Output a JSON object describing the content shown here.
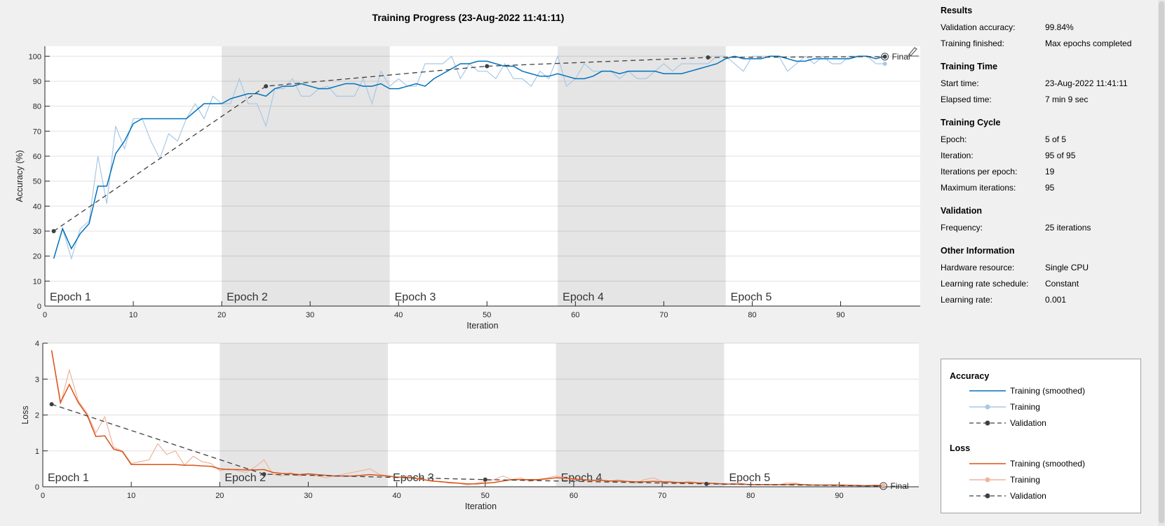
{
  "title": "Training Progress (23-Aug-2022 11:41:11)",
  "colors": {
    "accuracy_smoothed": "#0072bd",
    "accuracy_training": "#a8c8e6",
    "loss_smoothed": "#d95319",
    "loss_training": "#f0b49b",
    "validation": "#404040",
    "epoch_shade": "#e5e5e5"
  },
  "results": {
    "heading": "Results",
    "rows": [
      {
        "label": "Validation accuracy:",
        "value": "99.84%"
      },
      {
        "label": "Training finished:",
        "value": "Max epochs completed"
      }
    ]
  },
  "training_time": {
    "heading": "Training Time",
    "rows": [
      {
        "label": "Start time:",
        "value": "23-Aug-2022 11:41:11"
      },
      {
        "label": "Elapsed time:",
        "value": "7 min 9 sec"
      }
    ]
  },
  "training_cycle": {
    "heading": "Training Cycle",
    "rows": [
      {
        "label": "Epoch:",
        "value": "5 of 5"
      },
      {
        "label": "Iteration:",
        "value": "95 of 95"
      },
      {
        "label": "Iterations per epoch:",
        "value": "19"
      },
      {
        "label": "Maximum iterations:",
        "value": "95"
      }
    ]
  },
  "validation": {
    "heading": "Validation",
    "rows": [
      {
        "label": "Frequency:",
        "value": "25 iterations"
      }
    ]
  },
  "other_information": {
    "heading": "Other Information",
    "rows": [
      {
        "label": "Hardware resource:",
        "value": "Single CPU"
      },
      {
        "label": "Learning rate schedule:",
        "value": "Constant"
      },
      {
        "label": "Learning rate:",
        "value": "0.001"
      }
    ]
  },
  "legend": {
    "accuracy_heading": "Accuracy",
    "loss_heading": "Loss",
    "training_smoothed": "Training (smoothed)",
    "training": "Training",
    "validation": "Validation"
  },
  "chart_data": [
    {
      "type": "line",
      "ylabel": "Accuracy (%)",
      "xlabel": "Iteration",
      "xlim": [
        0,
        99
      ],
      "ylim": [
        0,
        104
      ],
      "xticks": [
        0,
        10,
        20,
        30,
        40,
        50,
        60,
        70,
        80,
        90
      ],
      "yticks": [
        0,
        10,
        20,
        30,
        40,
        50,
        60,
        70,
        80,
        90,
        100
      ],
      "grid": true,
      "final_label": "Final",
      "epochs": [
        {
          "label": "Epoch 1",
          "start": 0,
          "end": 20
        },
        {
          "label": "Epoch 2",
          "start": 20,
          "end": 39
        },
        {
          "label": "Epoch 3",
          "start": 39,
          "end": 58
        },
        {
          "label": "Epoch 4",
          "start": 58,
          "end": 77
        },
        {
          "label": "Epoch 5",
          "start": 77,
          "end": 96
        }
      ],
      "series": [
        {
          "name": "Training",
          "x": [
            1,
            2,
            3,
            4,
            5,
            6,
            7,
            8,
            9,
            10,
            11,
            12,
            13,
            14,
            15,
            16,
            17,
            18,
            19,
            20,
            21,
            22,
            23,
            24,
            25,
            26,
            27,
            28,
            29,
            30,
            31,
            32,
            33,
            34,
            35,
            36,
            37,
            38,
            39,
            40,
            41,
            42,
            43,
            44,
            45,
            46,
            47,
            48,
            49,
            50,
            51,
            52,
            53,
            54,
            55,
            56,
            57,
            58,
            59,
            60,
            61,
            62,
            63,
            64,
            65,
            66,
            67,
            68,
            69,
            70,
            71,
            72,
            73,
            74,
            75,
            76,
            77,
            78,
            79,
            80,
            81,
            82,
            83,
            84,
            85,
            86,
            87,
            88,
            89,
            90,
            91,
            92,
            93,
            94,
            95
          ],
          "y": [
            19,
            31,
            19,
            31,
            34,
            60,
            41,
            72,
            63,
            75,
            75,
            66,
            59,
            69,
            66,
            75,
            81,
            75,
            84,
            81,
            81,
            91,
            81,
            81,
            72,
            87,
            87,
            91,
            84,
            84,
            87,
            88,
            84,
            84,
            84,
            91,
            81,
            94,
            88,
            91,
            88,
            88,
            97,
            97,
            97,
            100,
            91,
            97,
            94,
            94,
            91,
            97,
            91,
            91,
            88,
            94,
            91,
            100,
            88,
            91,
            97,
            94,
            94,
            94,
            91,
            94,
            91,
            91,
            94,
            97,
            94,
            97,
            97,
            97,
            97,
            100,
            100,
            97,
            94,
            100,
            100,
            100,
            100,
            94,
            97,
            100,
            97,
            100,
            97,
            97,
            100,
            100,
            100,
            97,
            97
          ]
        },
        {
          "name": "Training (smoothed)",
          "x": [
            1,
            2,
            3,
            4,
            5,
            6,
            7,
            8,
            9,
            10,
            11,
            12,
            13,
            14,
            15,
            16,
            17,
            18,
            19,
            20,
            21,
            22,
            23,
            24,
            25,
            26,
            27,
            28,
            29,
            30,
            31,
            32,
            33,
            34,
            35,
            36,
            37,
            38,
            39,
            40,
            41,
            42,
            43,
            44,
            45,
            46,
            47,
            48,
            49,
            50,
            51,
            52,
            53,
            54,
            55,
            56,
            57,
            58,
            59,
            60,
            61,
            62,
            63,
            64,
            65,
            66,
            67,
            68,
            69,
            70,
            71,
            72,
            73,
            74,
            75,
            76,
            77,
            78,
            79,
            80,
            81,
            82,
            83,
            84,
            85,
            86,
            87,
            88,
            89,
            90,
            91,
            92,
            93,
            94,
            95
          ],
          "y": [
            19,
            31,
            23,
            29,
            33,
            48,
            48,
            61,
            66,
            73,
            75,
            75,
            75,
            75,
            75,
            75,
            78,
            81,
            81,
            81,
            83,
            84,
            85,
            85,
            84,
            87,
            88,
            88,
            89,
            88,
            87,
            87,
            88,
            89,
            89,
            88,
            88,
            89,
            87,
            87,
            88,
            89,
            88,
            91,
            93,
            95,
            97,
            97,
            98,
            98,
            97,
            96,
            96,
            94,
            93,
            92,
            92,
            93,
            92,
            91,
            91,
            92,
            94,
            94,
            93,
            94,
            94,
            94,
            94,
            93,
            93,
            93,
            94,
            95,
            96,
            97,
            99,
            100,
            99,
            99,
            99,
            100,
            100,
            99,
            98,
            98,
            99,
            99,
            99,
            99,
            99,
            100,
            100,
            99,
            100
          ]
        },
        {
          "name": "Validation",
          "x": [
            1,
            25,
            50,
            75,
            95
          ],
          "y": [
            30,
            88,
            96,
            99.5,
            99.84
          ]
        }
      ]
    },
    {
      "type": "line",
      "ylabel": "Loss",
      "xlabel": "Iteration",
      "xlim": [
        0,
        99
      ],
      "ylim": [
        0,
        4
      ],
      "xticks": [
        0,
        10,
        20,
        30,
        40,
        50,
        60,
        70,
        80,
        90
      ],
      "yticks": [
        0,
        1,
        2,
        3,
        4
      ],
      "grid": true,
      "final_label": "Final",
      "epochs": [
        {
          "label": "Epoch 1",
          "start": 0,
          "end": 20
        },
        {
          "label": "Epoch 2",
          "start": 20,
          "end": 39
        },
        {
          "label": "Epoch 3",
          "start": 39,
          "end": 58
        },
        {
          "label": "Epoch 4",
          "start": 58,
          "end": 77
        },
        {
          "label": "Epoch 5",
          "start": 77,
          "end": 96
        }
      ],
      "series": [
        {
          "name": "Training",
          "x": [
            1,
            2,
            3,
            4,
            5,
            6,
            7,
            8,
            9,
            10,
            11,
            12,
            13,
            14,
            15,
            16,
            17,
            18,
            19,
            20,
            21,
            22,
            23,
            24,
            25,
            26,
            27,
            28,
            29,
            30,
            31,
            32,
            33,
            34,
            35,
            36,
            37,
            38,
            39,
            40,
            41,
            42,
            43,
            44,
            45,
            46,
            47,
            48,
            49,
            50,
            51,
            52,
            53,
            54,
            55,
            56,
            57,
            58,
            59,
            60,
            61,
            62,
            63,
            64,
            65,
            66,
            67,
            68,
            69,
            70,
            71,
            72,
            73,
            74,
            75,
            76,
            77,
            78,
            79,
            80,
            81,
            82,
            83,
            84,
            85,
            86,
            87,
            88,
            89,
            90,
            91,
            92,
            93,
            94,
            95
          ],
          "y": [
            3.8,
            2.3,
            3.25,
            2.4,
            2.05,
            1.5,
            1.95,
            1.1,
            1.0,
            0.65,
            0.7,
            0.75,
            1.2,
            0.9,
            1.0,
            0.6,
            0.85,
            0.7,
            0.65,
            0.45,
            0.5,
            0.45,
            0.4,
            0.55,
            0.75,
            0.35,
            0.3,
            0.4,
            0.3,
            0.35,
            0.3,
            0.25,
            0.3,
            0.35,
            0.4,
            0.45,
            0.5,
            0.35,
            0.3,
            0.25,
            0.3,
            0.25,
            0.2,
            0.15,
            0.15,
            0.1,
            0.1,
            0.05,
            0.1,
            0.15,
            0.2,
            0.3,
            0.2,
            0.25,
            0.15,
            0.2,
            0.25,
            0.3,
            0.25,
            0.2,
            0.2,
            0.15,
            0.2,
            0.15,
            0.2,
            0.15,
            0.1,
            0.2,
            0.25,
            0.15,
            0.15,
            0.1,
            0.15,
            0.1,
            0.1,
            0.1,
            0.05,
            0.1,
            0.1,
            0.05,
            0.05,
            0.05,
            0.05,
            0.1,
            0.1,
            0.05,
            0.05,
            0.05,
            0.05,
            0.05,
            0.05,
            0.03,
            0.03,
            0.05,
            0.03
          ]
        },
        {
          "name": "Training (smoothed)",
          "x": [
            1,
            2,
            3,
            4,
            5,
            6,
            7,
            8,
            9,
            10,
            11,
            12,
            13,
            14,
            15,
            16,
            17,
            18,
            19,
            20,
            21,
            22,
            23,
            24,
            25,
            26,
            27,
            28,
            29,
            30,
            31,
            32,
            33,
            34,
            35,
            36,
            37,
            38,
            39,
            40,
            41,
            42,
            43,
            44,
            45,
            46,
            47,
            48,
            49,
            50,
            51,
            52,
            53,
            54,
            55,
            56,
            57,
            58,
            59,
            60,
            61,
            62,
            63,
            64,
            65,
            66,
            67,
            68,
            69,
            70,
            71,
            72,
            73,
            74,
            75,
            76,
            77,
            78,
            79,
            80,
            81,
            82,
            83,
            84,
            85,
            86,
            87,
            88,
            89,
            90,
            91,
            92,
            93,
            94,
            95
          ],
          "y": [
            3.8,
            2.35,
            2.85,
            2.35,
            2.0,
            1.4,
            1.42,
            1.05,
            0.98,
            0.62,
            0.62,
            0.62,
            0.62,
            0.62,
            0.62,
            0.6,
            0.6,
            0.58,
            0.57,
            0.5,
            0.48,
            0.48,
            0.47,
            0.47,
            0.48,
            0.4,
            0.37,
            0.36,
            0.34,
            0.36,
            0.34,
            0.32,
            0.3,
            0.3,
            0.3,
            0.32,
            0.34,
            0.32,
            0.3,
            0.27,
            0.26,
            0.24,
            0.2,
            0.16,
            0.14,
            0.12,
            0.1,
            0.08,
            0.08,
            0.1,
            0.12,
            0.16,
            0.2,
            0.2,
            0.2,
            0.2,
            0.22,
            0.25,
            0.24,
            0.22,
            0.2,
            0.18,
            0.18,
            0.16,
            0.16,
            0.15,
            0.14,
            0.14,
            0.15,
            0.14,
            0.13,
            0.12,
            0.12,
            0.11,
            0.1,
            0.09,
            0.08,
            0.07,
            0.07,
            0.06,
            0.06,
            0.06,
            0.06,
            0.06,
            0.07,
            0.06,
            0.05,
            0.05,
            0.05,
            0.05,
            0.04,
            0.04,
            0.03,
            0.04,
            0.03
          ]
        },
        {
          "name": "Validation",
          "x": [
            1,
            25,
            50,
            75,
            95
          ],
          "y": [
            2.3,
            0.35,
            0.2,
            0.08,
            0.02
          ]
        }
      ]
    }
  ]
}
